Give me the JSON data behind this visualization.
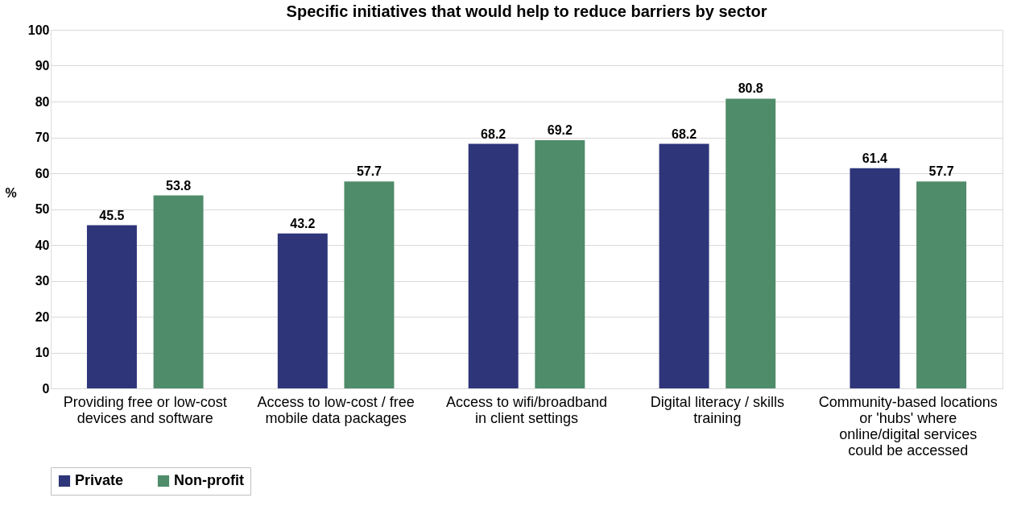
{
  "chart_data": {
    "type": "bar",
    "title": "Specific initiatives that would help to reduce barriers by sector",
    "ylabel": "%",
    "categories": [
      "Providing free or low-cost devices and software",
      "Access to low-cost / free mobile data packages",
      "Access to wifi/broadband in client settings",
      "Digital literacy / skills training",
      "Community-based locations or 'hubs' where online/digital services could be accessed"
    ],
    "series": [
      {
        "name": "Private",
        "color": "#2e3579",
        "values": [
          45.5,
          43.2,
          68.2,
          68.2,
          61.4
        ]
      },
      {
        "name": "Non-profit",
        "color": "#4f8c6a",
        "values": [
          53.8,
          57.7,
          69.2,
          80.8,
          57.7
        ]
      }
    ],
    "ylim": [
      0,
      100
    ],
    "yticks": [
      0,
      10,
      20,
      30,
      40,
      50,
      60,
      70,
      80,
      90,
      100
    ],
    "grid": "y",
    "legend": "bottom",
    "data_labels": true
  }
}
